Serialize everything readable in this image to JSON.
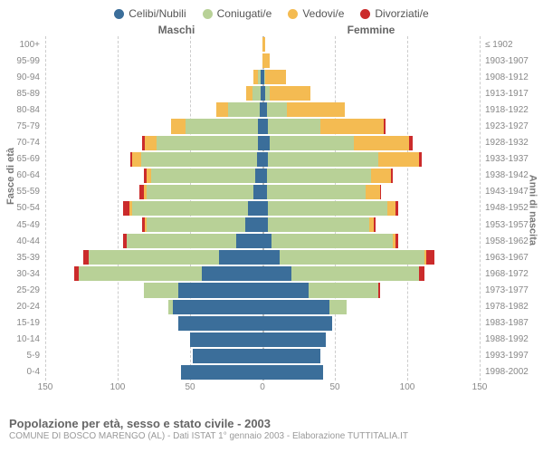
{
  "legend": [
    {
      "label": "Celibi/Nubili",
      "color": "#3b6e9a"
    },
    {
      "label": "Coniugati/e",
      "color": "#b8d197"
    },
    {
      "label": "Vedovi/e",
      "color": "#f4bb52"
    },
    {
      "label": "Divorziati/e",
      "color": "#cb2b2b"
    }
  ],
  "header_male": "Maschi",
  "header_female": "Femmine",
  "axis_left": "Fasce di età",
  "axis_right": "Anni di nascita",
  "xticks": [
    150,
    100,
    50,
    0,
    50,
    100,
    150
  ],
  "xmax": 150,
  "age_bands": [
    {
      "age": "100+",
      "birth": "≤ 1902",
      "m": {
        "c": 0,
        "co": 0,
        "v": 0,
        "d": 0
      },
      "f": {
        "c": 0,
        "co": 0,
        "v": 2,
        "d": 0
      }
    },
    {
      "age": "95-99",
      "birth": "1903-1907",
      "m": {
        "c": 0,
        "co": 0,
        "v": 0,
        "d": 0
      },
      "f": {
        "c": 0,
        "co": 0,
        "v": 5,
        "d": 0
      }
    },
    {
      "age": "90-94",
      "birth": "1908-1912",
      "m": {
        "c": 1,
        "co": 2,
        "v": 3,
        "d": 0
      },
      "f": {
        "c": 1,
        "co": 1,
        "v": 14,
        "d": 0
      }
    },
    {
      "age": "85-89",
      "birth": "1913-1917",
      "m": {
        "c": 1,
        "co": 6,
        "v": 4,
        "d": 0
      },
      "f": {
        "c": 2,
        "co": 3,
        "v": 28,
        "d": 0
      }
    },
    {
      "age": "80-84",
      "birth": "1918-1922",
      "m": {
        "c": 2,
        "co": 22,
        "v": 8,
        "d": 0
      },
      "f": {
        "c": 3,
        "co": 14,
        "v": 40,
        "d": 0
      }
    },
    {
      "age": "75-79",
      "birth": "1923-1927",
      "m": {
        "c": 3,
        "co": 50,
        "v": 10,
        "d": 0
      },
      "f": {
        "c": 4,
        "co": 36,
        "v": 44,
        "d": 1
      }
    },
    {
      "age": "70-74",
      "birth": "1928-1932",
      "m": {
        "c": 3,
        "co": 70,
        "v": 8,
        "d": 2
      },
      "f": {
        "c": 5,
        "co": 58,
        "v": 38,
        "d": 3
      }
    },
    {
      "age": "65-69",
      "birth": "1933-1937",
      "m": {
        "c": 4,
        "co": 80,
        "v": 6,
        "d": 1
      },
      "f": {
        "c": 4,
        "co": 76,
        "v": 28,
        "d": 2
      }
    },
    {
      "age": "60-64",
      "birth": "1938-1942",
      "m": {
        "c": 5,
        "co": 72,
        "v": 3,
        "d": 2
      },
      "f": {
        "c": 3,
        "co": 72,
        "v": 14,
        "d": 1
      }
    },
    {
      "age": "55-59",
      "birth": "1943-1947",
      "m": {
        "c": 6,
        "co": 74,
        "v": 2,
        "d": 3
      },
      "f": {
        "c": 3,
        "co": 68,
        "v": 10,
        "d": 1
      }
    },
    {
      "age": "50-54",
      "birth": "1948-1952",
      "m": {
        "c": 10,
        "co": 80,
        "v": 2,
        "d": 4
      },
      "f": {
        "c": 4,
        "co": 82,
        "v": 6,
        "d": 2
      }
    },
    {
      "age": "45-49",
      "birth": "1953-1957",
      "m": {
        "c": 12,
        "co": 68,
        "v": 1,
        "d": 2
      },
      "f": {
        "c": 4,
        "co": 70,
        "v": 3,
        "d": 1
      }
    },
    {
      "age": "40-44",
      "birth": "1958-1962",
      "m": {
        "c": 18,
        "co": 76,
        "v": 0,
        "d": 2
      },
      "f": {
        "c": 6,
        "co": 84,
        "v": 2,
        "d": 2
      }
    },
    {
      "age": "35-39",
      "birth": "1963-1967",
      "m": {
        "c": 30,
        "co": 90,
        "v": 0,
        "d": 4
      },
      "f": {
        "c": 12,
        "co": 100,
        "v": 1,
        "d": 6
      }
    },
    {
      "age": "30-34",
      "birth": "1968-1972",
      "m": {
        "c": 42,
        "co": 85,
        "v": 0,
        "d": 3
      },
      "f": {
        "c": 20,
        "co": 88,
        "v": 0,
        "d": 4
      }
    },
    {
      "age": "25-29",
      "birth": "1973-1977",
      "m": {
        "c": 58,
        "co": 24,
        "v": 0,
        "d": 0
      },
      "f": {
        "c": 32,
        "co": 48,
        "v": 0,
        "d": 1
      }
    },
    {
      "age": "20-24",
      "birth": "1978-1982",
      "m": {
        "c": 62,
        "co": 3,
        "v": 0,
        "d": 0
      },
      "f": {
        "c": 46,
        "co": 12,
        "v": 0,
        "d": 0
      }
    },
    {
      "age": "15-19",
      "birth": "1983-1987",
      "m": {
        "c": 58,
        "co": 0,
        "v": 0,
        "d": 0
      },
      "f": {
        "c": 48,
        "co": 0,
        "v": 0,
        "d": 0
      }
    },
    {
      "age": "10-14",
      "birth": "1988-1992",
      "m": {
        "c": 50,
        "co": 0,
        "v": 0,
        "d": 0
      },
      "f": {
        "c": 44,
        "co": 0,
        "v": 0,
        "d": 0
      }
    },
    {
      "age": "5-9",
      "birth": "1993-1997",
      "m": {
        "c": 48,
        "co": 0,
        "v": 0,
        "d": 0
      },
      "f": {
        "c": 40,
        "co": 0,
        "v": 0,
        "d": 0
      }
    },
    {
      "age": "0-4",
      "birth": "1998-2002",
      "m": {
        "c": 56,
        "co": 0,
        "v": 0,
        "d": 0
      },
      "f": {
        "c": 42,
        "co": 0,
        "v": 0,
        "d": 0
      }
    }
  ],
  "title": "Popolazione per età, sesso e stato civile - 2003",
  "subtitle": "COMUNE DI BOSCO MARENGO (AL) - Dati ISTAT 1° gennaio 2003 - Elaborazione TUTTITALIA.IT",
  "colors": {
    "celibi": "#3b6e9a",
    "coniugati": "#b8d197",
    "vedovi": "#f4bb52",
    "divorziati": "#cb2b2b",
    "grid": "#cccccc"
  }
}
